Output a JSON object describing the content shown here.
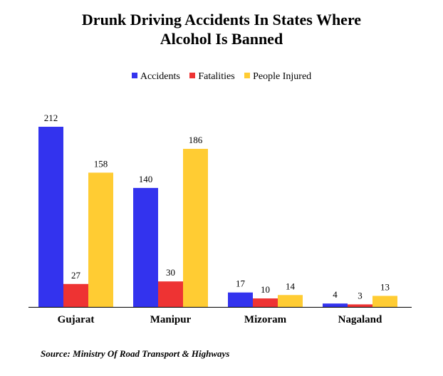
{
  "chart_data": {
    "type": "bar",
    "title_lines": [
      "Drunk Driving Accidents In States Where",
      "Alcohol Is Banned"
    ],
    "categories": [
      "Gujarat",
      "Manipur",
      "Mizoram",
      "Nagaland"
    ],
    "series": [
      {
        "name": "Accidents",
        "color": "#3333ee",
        "values": [
          212,
          140,
          17,
          4
        ]
      },
      {
        "name": "Fatalities",
        "color": "#ee3333",
        "values": [
          27,
          30,
          10,
          3
        ]
      },
      {
        "name": "People Injured",
        "color": "#ffcc33",
        "values": [
          158,
          186,
          14,
          13
        ]
      }
    ],
    "ylim": [
      0,
      212
    ],
    "legend_position": "top",
    "grid": false
  },
  "source": "Source: Ministry Of Road Transport & Highways"
}
